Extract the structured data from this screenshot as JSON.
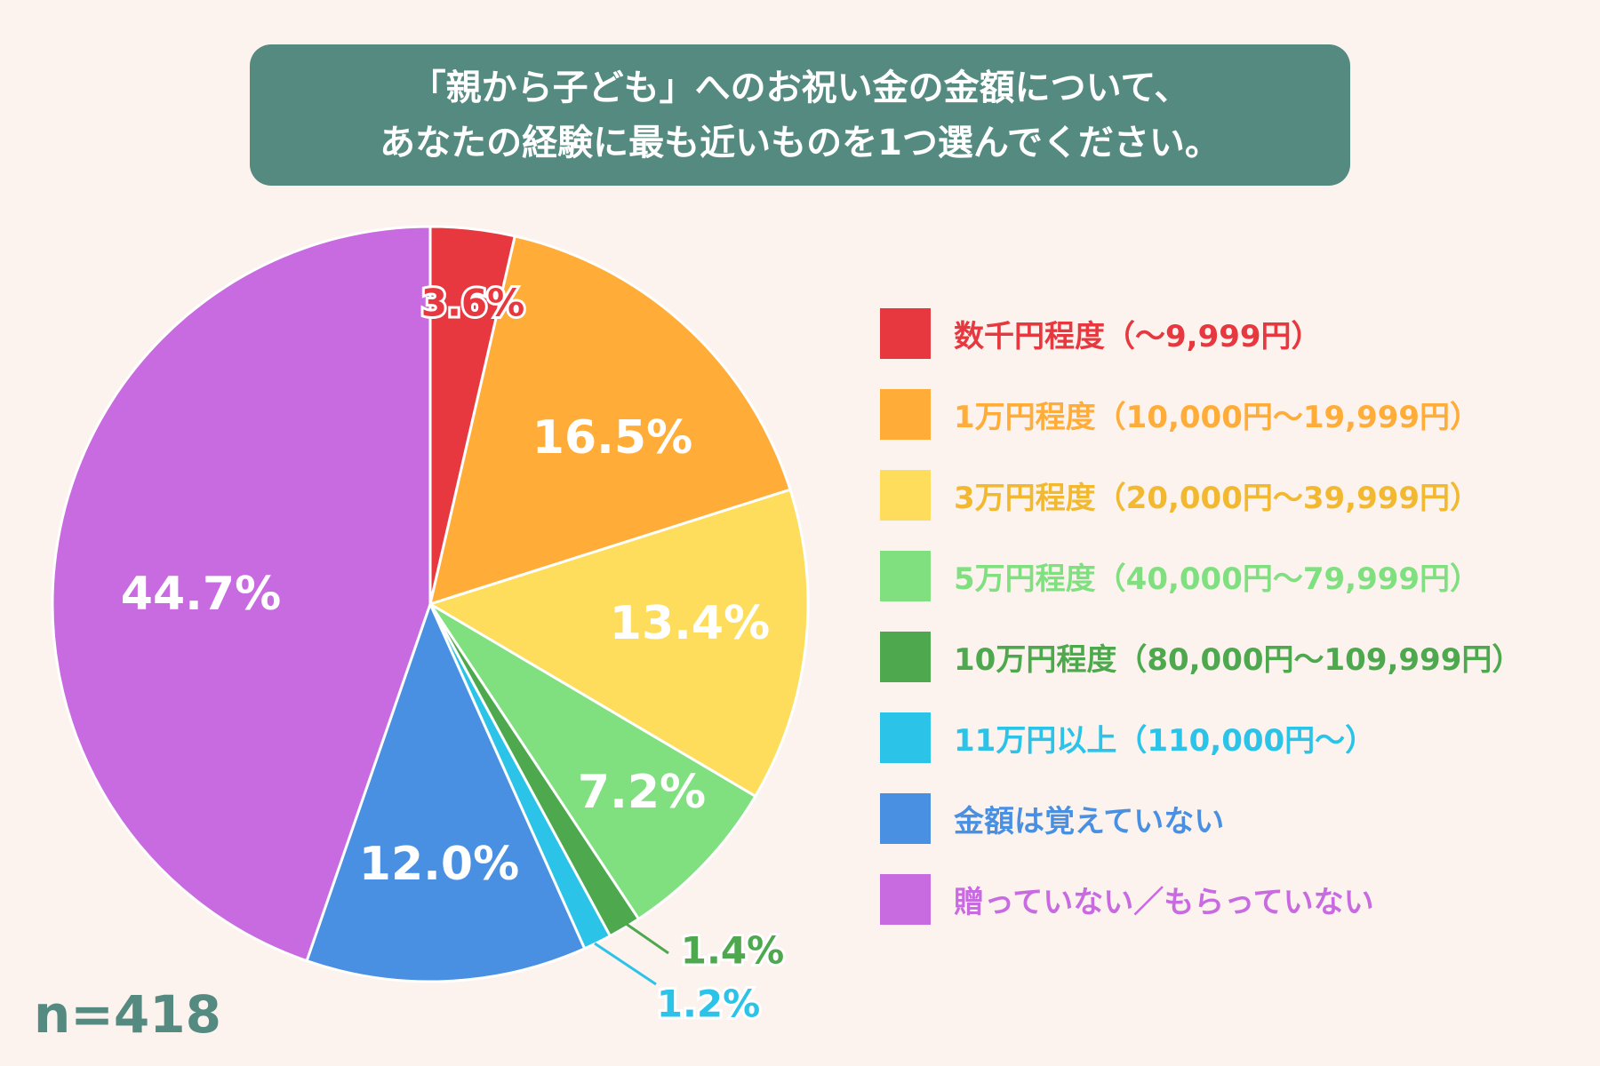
{
  "title": {
    "line1": "「親から子ども」へのお祝い金の金額について、",
    "line2": "あなたの経験に最も近いものを1つ選んでください。"
  },
  "n_label": "n=418",
  "chart_data": {
    "type": "pie",
    "start": "top",
    "direction": "clockwise",
    "legend_position": "right",
    "categories": [
      "数千円程度（〜9,999円）",
      "1万円程度（10,000円〜19,999円）",
      "3万円程度（20,000円〜39,999円）",
      "5万円程度（40,000円〜79,999円）",
      "10万円程度（80,000円〜109,999円）",
      "11万円以上（110,000円〜）",
      "金額は覚えていない",
      "贈っていない／もらっていない"
    ],
    "values": [
      3.6,
      16.5,
      13.4,
      7.2,
      1.4,
      1.2,
      12.0,
      44.7
    ],
    "labels": [
      "3.6%",
      "16.5%",
      "13.4%",
      "7.2%",
      "1.4%",
      "1.2%",
      "12.0%",
      "44.7%"
    ],
    "colors": [
      "#E8383F",
      "#FFAC38",
      "#FFDD5C",
      "#80E080",
      "#4EA84D",
      "#2BC3E8",
      "#4A90E2",
      "#C86BE0"
    ]
  }
}
